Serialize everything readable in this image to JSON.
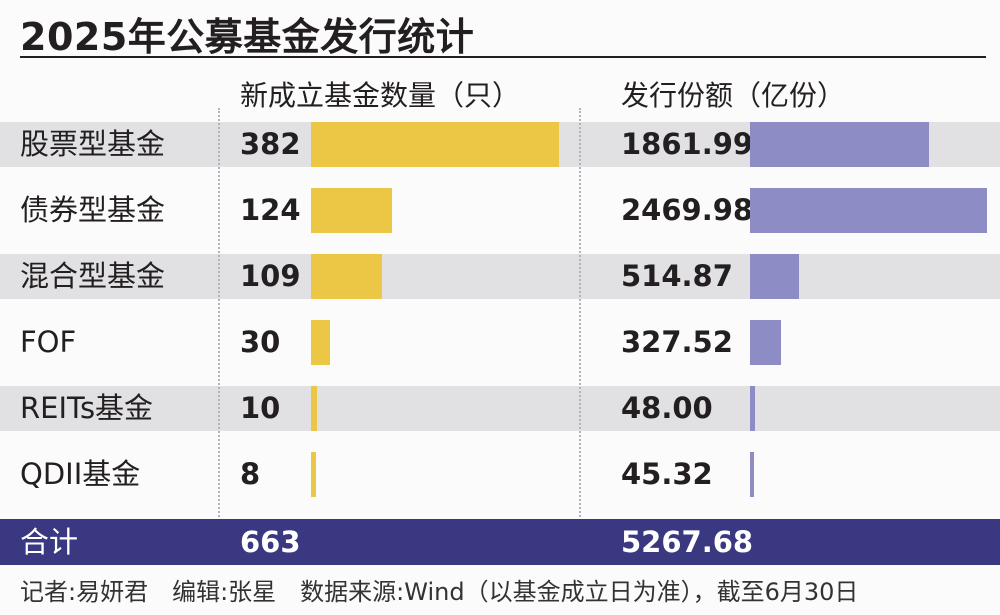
{
  "title": "2025年公募基金发行统计",
  "headers": {
    "count": "新成立基金数量（只）",
    "amount": "发行份额（亿份）"
  },
  "colors": {
    "count_bar": "#ecc746",
    "amount_bar": "#8e8cc5",
    "row_shade": "#e1e1e3",
    "total_bg": "#3a3880"
  },
  "chart_data": {
    "type": "bar",
    "categories": [
      "股票型基金",
      "债券型基金",
      "混合型基金",
      "FOF",
      "REITs基金",
      "QDII基金"
    ],
    "series": [
      {
        "name": "新成立基金数量（只）",
        "values": [
          382,
          124,
          109,
          30,
          10,
          8
        ]
      },
      {
        "name": "发行份额（亿份）",
        "values": [
          1861.99,
          2469.98,
          514.87,
          327.52,
          48.0,
          45.32
        ]
      }
    ],
    "display_values": {
      "count": [
        "382",
        "124",
        "109",
        "30",
        "10",
        "8"
      ],
      "amount": [
        "1861.99",
        "2469.98",
        "514.87",
        "327.52",
        "48.00",
        "45.32"
      ]
    }
  },
  "total": {
    "label": "合计",
    "count": "663",
    "amount": "5267.68"
  },
  "footer": "记者:易妍君　编辑:张星　数据来源:Wind（以基金成立日为准），截至6月30日"
}
